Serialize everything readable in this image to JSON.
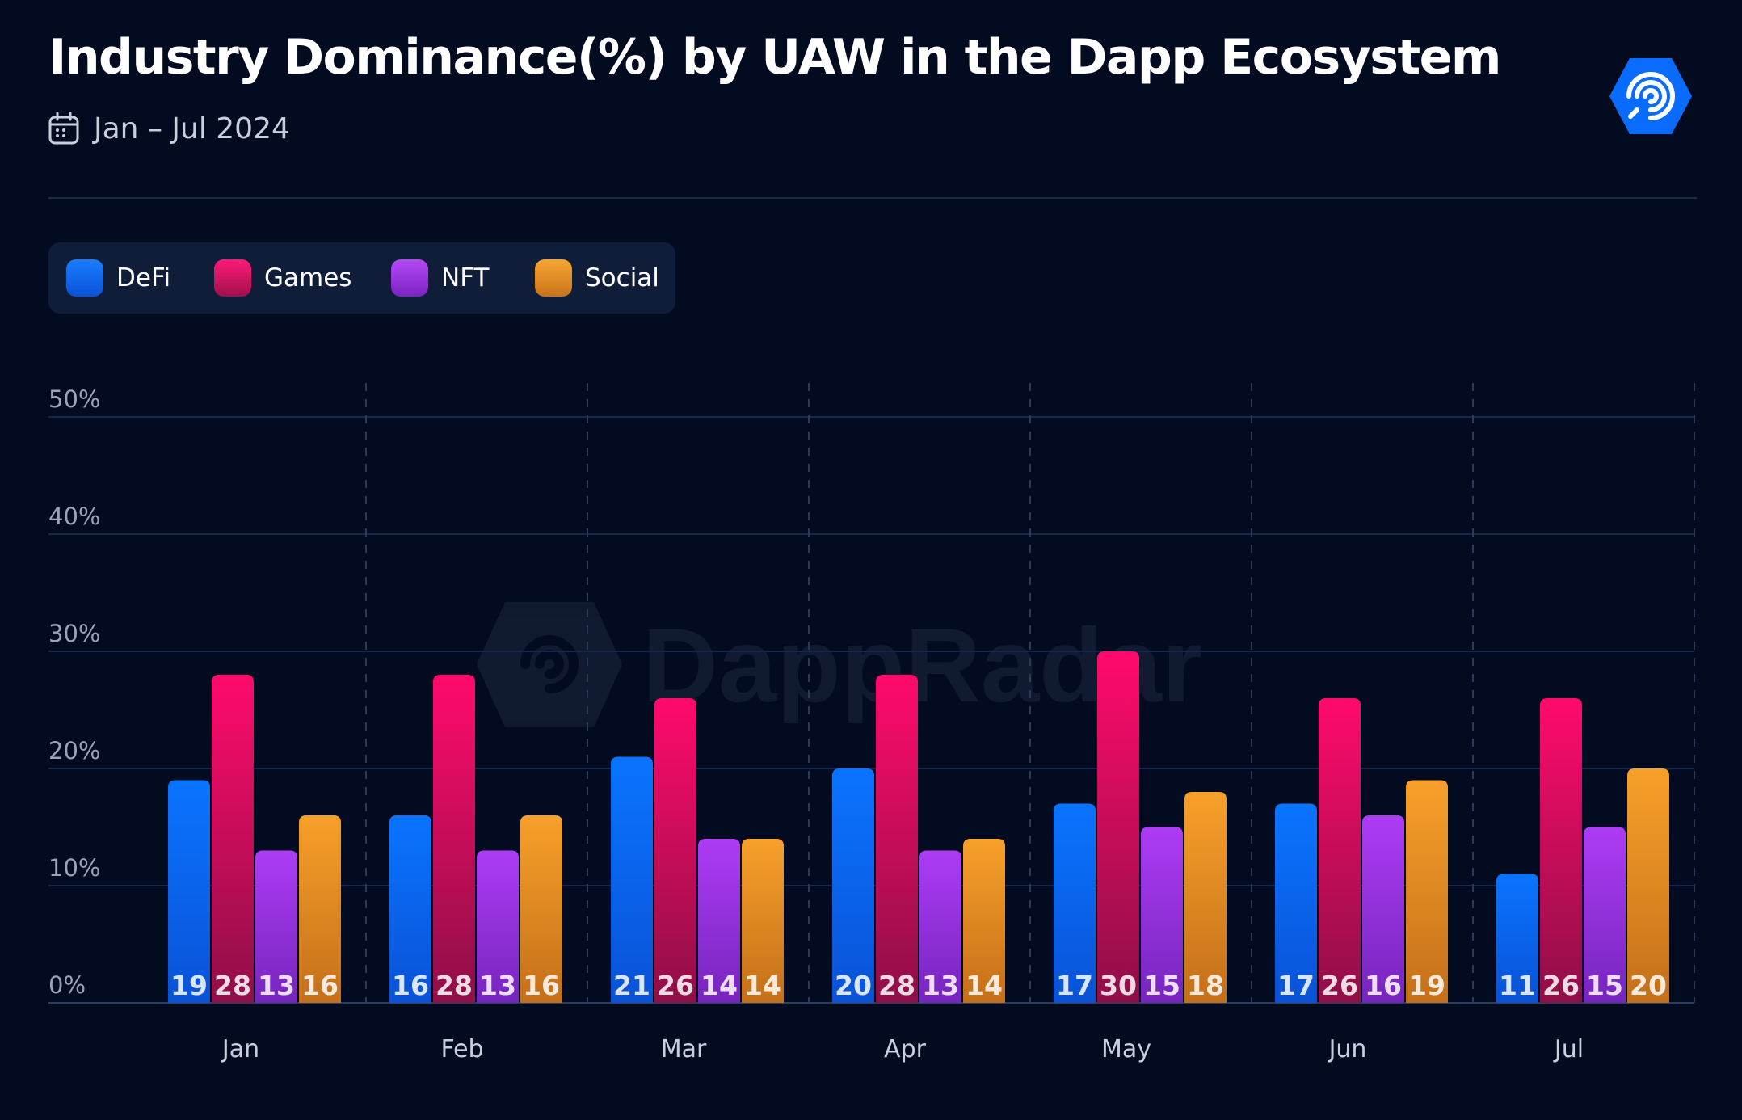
{
  "header": {
    "title": "Industry Dominance(%) by UAW in the Dapp Ecosystem",
    "date_range": "Jan – Jul 2024",
    "calendar_icon": "calendar-icon",
    "logo_icon": "dappradar-logo-icon",
    "watermark_text": "DappRadar"
  },
  "legend": {
    "items": [
      {
        "label": "DeFi",
        "color": "#0a6cff"
      },
      {
        "label": "Games",
        "color": "#ff0a6c"
      },
      {
        "label": "NFT",
        "color": "#a93af2"
      },
      {
        "label": "Social",
        "color": "#f59a23"
      }
    ]
  },
  "chart_data": {
    "type": "bar",
    "title": "Industry Dominance(%) by UAW in the Dapp Ecosystem",
    "subtitle": "Jan – Jul 2024",
    "categories": [
      "Jan",
      "Feb",
      "Mar",
      "Apr",
      "May",
      "Jun",
      "Jul"
    ],
    "series": [
      {
        "name": "DeFi",
        "color": "#0a6cff",
        "values": [
          19,
          16,
          21,
          20,
          17,
          17,
          11
        ]
      },
      {
        "name": "Games",
        "color": "#ff0a6c",
        "values": [
          28,
          28,
          26,
          28,
          30,
          26,
          26
        ]
      },
      {
        "name": "NFT",
        "color": "#a93af2",
        "values": [
          13,
          13,
          14,
          13,
          15,
          16,
          15
        ]
      },
      {
        "name": "Social",
        "color": "#f59a23",
        "values": [
          16,
          16,
          14,
          14,
          18,
          19,
          20
        ]
      }
    ],
    "ylim": [
      0,
      50
    ],
    "yticks": [
      "0%",
      "10%",
      "20%",
      "30%",
      "40%",
      "50%"
    ],
    "xlabel": "",
    "ylabel": "",
    "grid": true,
    "legend_position": "top-left",
    "data_labels": true
  }
}
